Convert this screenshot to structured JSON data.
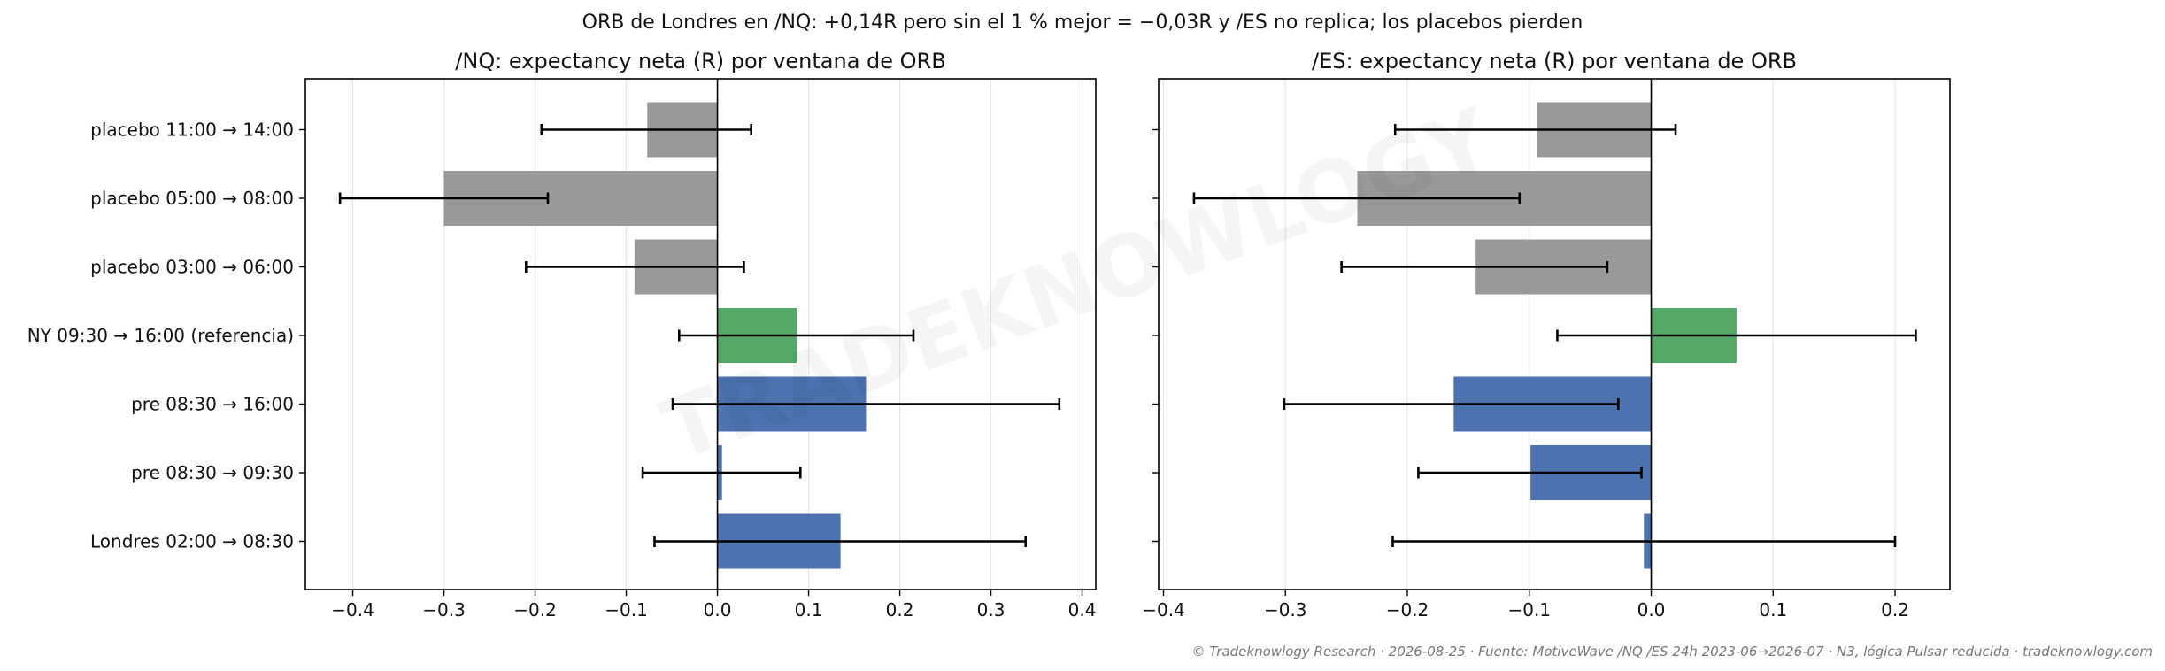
{
  "suptitle": "ORB de Londres en /NQ: +0,14R pero sin el 1 % mejor = −0,03R y /ES no replica; los placebos pierden",
  "footer": "© Tradeknowlogy Research   ·   2026-08-25   ·   Fuente: MotiveWave /NQ /ES 24h 2023-06→2026-07 · N3, lógica Pulsar reducida   ·   tradeknowlogy.com",
  "watermark": "TRADEKNOWLOGY",
  "colors": {
    "placebo": "#999999",
    "reference": "#55a868",
    "pre": "#4c72b0",
    "errorbar": "#000000",
    "grid": "#e6e6e6",
    "zero_line": "#000000"
  },
  "chart_data": [
    {
      "type": "bar",
      "orientation": "horizontal",
      "title": "/NQ: expectancy neta (R) por ventana de ORB",
      "categories": [
        "placebo 11:00 → 14:00",
        "placebo 05:00 → 08:00",
        "placebo 03:00 → 06:00",
        "NY 09:30 → 16:00 (referencia)",
        "pre 08:30 → 16:00",
        "pre 08:30 → 09:30",
        "Londres 02:00 → 08:30"
      ],
      "groups": [
        "placebo",
        "placebo",
        "placebo",
        "reference",
        "pre",
        "pre",
        "pre"
      ],
      "values": [
        -0.077,
        -0.3,
        -0.091,
        0.087,
        0.163,
        0.005,
        0.135
      ],
      "ci_low": [
        -0.193,
        -0.414,
        -0.21,
        -0.042,
        -0.049,
        -0.082,
        -0.069
      ],
      "ci_high": [
        0.037,
        -0.186,
        0.029,
        0.215,
        0.375,
        0.091,
        0.338
      ],
      "xlim": [
        -0.452,
        0.415
      ],
      "xticks": [
        -0.4,
        -0.3,
        -0.2,
        -0.1,
        0.0,
        0.1,
        0.2,
        0.3,
        0.4
      ],
      "xtick_labels": [
        "−0.4",
        "−0.3",
        "−0.2",
        "−0.1",
        "0.0",
        "0.1",
        "0.2",
        "0.3",
        "0.4"
      ],
      "grid": "x",
      "show_category_labels": true
    },
    {
      "type": "bar",
      "orientation": "horizontal",
      "title": "/ES: expectancy neta (R) por ventana de ORB",
      "categories": [
        "placebo 11:00 → 14:00",
        "placebo 05:00 → 08:00",
        "placebo 03:00 → 06:00",
        "NY 09:30 → 16:00 (referencia)",
        "pre 08:30 → 16:00",
        "pre 08:30 → 09:30",
        "Londres 02:00 → 08:30"
      ],
      "groups": [
        "placebo",
        "placebo",
        "placebo",
        "reference",
        "pre",
        "pre",
        "pre"
      ],
      "values": [
        -0.094,
        -0.241,
        -0.144,
        0.07,
        -0.162,
        -0.099,
        -0.006
      ],
      "ci_low": [
        -0.21,
        -0.375,
        -0.254,
        -0.077,
        -0.301,
        -0.191,
        -0.212
      ],
      "ci_high": [
        0.02,
        -0.108,
        -0.036,
        0.217,
        -0.027,
        -0.008,
        0.2
      ],
      "xlim": [
        -0.404,
        0.245
      ],
      "xticks": [
        -0.4,
        -0.3,
        -0.2,
        -0.1,
        0.0,
        0.1,
        0.2
      ],
      "xtick_labels": [
        "−0.4",
        "−0.3",
        "−0.2",
        "−0.1",
        "0.0",
        "0.1",
        "0.2"
      ],
      "grid": "x",
      "show_category_labels": false
    }
  ]
}
